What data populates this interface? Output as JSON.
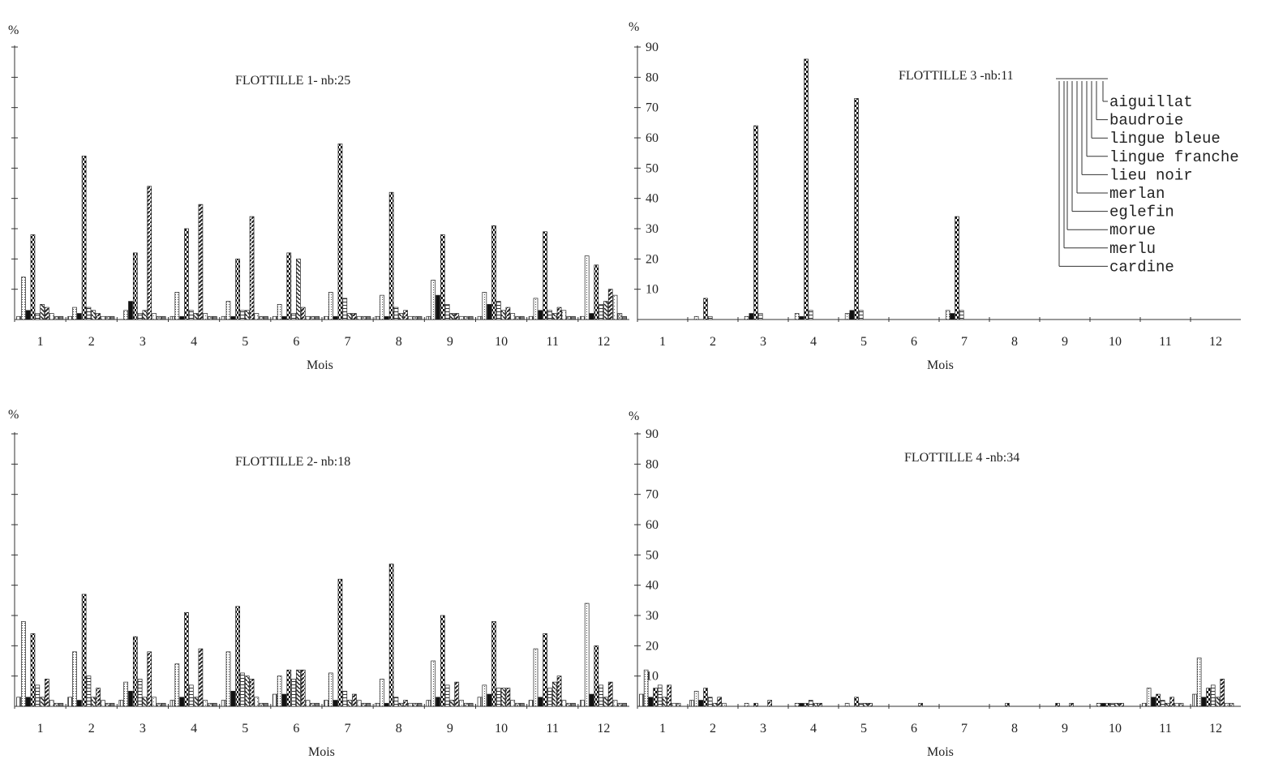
{
  "panel_titles": [
    "FLOTTILLE 1- nb:25",
    "FLOTTILLE 3 -nb:11",
    "FLOTTILLE 2- nb:18",
    "FLOTTILLE 4 -nb:34"
  ],
  "xlabel": "Mois",
  "ylabel": "%",
  "months": [
    "1",
    "2",
    "3",
    "4",
    "5",
    "6",
    "7",
    "8",
    "9",
    "10",
    "11",
    "12"
  ],
  "yticks": [
    "10",
    "20",
    "30",
    "40",
    "50",
    "60",
    "70",
    "80",
    "90"
  ],
  "legend": [
    "aiguillat",
    "baudroie",
    "lingue bleue",
    "lingue franche",
    "lieu noir",
    "merlan",
    "eglefin",
    "morue",
    "merlu",
    "cardine"
  ],
  "series_colors": {
    "cardine": "#555555",
    "merlu": "#888888",
    "morue": "#111111",
    "eglefin": "#1a1a1a",
    "merlan": "#333333",
    "lieu noir": "#222222",
    "lingue franche": "#444444",
    "lingue bleue": "#666666",
    "baudroie": "#777777",
    "aiguillat": "#2a2a2a"
  },
  "chart_data": [
    {
      "type": "bar",
      "title": "FLOTTILLE 1- nb:25",
      "xlabel": "Mois",
      "ylabel": "%",
      "ylim": [
        0,
        90
      ],
      "categories": [
        "1",
        "2",
        "3",
        "4",
        "5",
        "6",
        "7",
        "8",
        "9",
        "10",
        "11",
        "12"
      ],
      "series": [
        {
          "name": "cardine",
          "values": [
            1,
            1,
            0,
            1,
            1,
            1,
            1,
            1,
            1,
            1,
            1,
            1
          ]
        },
        {
          "name": "merlu",
          "values": [
            14,
            4,
            3,
            9,
            6,
            5,
            9,
            8,
            13,
            9,
            7,
            21
          ]
        },
        {
          "name": "morue",
          "values": [
            3,
            2,
            6,
            1,
            1,
            1,
            1,
            1,
            8,
            5,
            3,
            2
          ]
        },
        {
          "name": "eglefin",
          "values": [
            28,
            54,
            22,
            30,
            20,
            22,
            58,
            42,
            28,
            31,
            29,
            18
          ]
        },
        {
          "name": "merlan",
          "values": [
            2,
            4,
            2,
            3,
            3,
            2,
            7,
            4,
            5,
            6,
            3,
            5
          ]
        },
        {
          "name": "lieu noir",
          "values": [
            5,
            3,
            3,
            2,
            3,
            20,
            2,
            2,
            2,
            3,
            2,
            6
          ]
        },
        {
          "name": "lingue franche",
          "values": [
            4,
            2,
            44,
            38,
            34,
            4,
            2,
            3,
            2,
            4,
            4,
            10
          ]
        },
        {
          "name": "lingue bleue",
          "values": [
            2,
            1,
            2,
            2,
            2,
            1,
            1,
            1,
            1,
            2,
            3,
            8
          ]
        },
        {
          "name": "baudroie",
          "values": [
            1,
            1,
            1,
            1,
            1,
            1,
            1,
            1,
            1,
            1,
            1,
            2
          ]
        },
        {
          "name": "aiguillat",
          "values": [
            1,
            1,
            1,
            1,
            1,
            1,
            1,
            1,
            1,
            1,
            1,
            1
          ]
        }
      ]
    },
    {
      "type": "bar",
      "title": "FLOTTILLE 3 -nb:11",
      "xlabel": "Mois",
      "ylabel": "%",
      "ylim": [
        0,
        90
      ],
      "categories": [
        "1",
        "2",
        "3",
        "4",
        "5",
        "6",
        "7",
        "8",
        "9",
        "10",
        "11",
        "12"
      ],
      "series": [
        {
          "name": "cardine",
          "values": [
            0,
            0,
            0,
            0,
            0,
            0,
            0,
            0,
            0,
            0,
            0,
            0
          ]
        },
        {
          "name": "merlu",
          "values": [
            0,
            1,
            1,
            2,
            2,
            0,
            3,
            0,
            0,
            0,
            0,
            0
          ]
        },
        {
          "name": "morue",
          "values": [
            0,
            0,
            2,
            1,
            3,
            0,
            2,
            0,
            0,
            0,
            0,
            0
          ]
        },
        {
          "name": "eglefin",
          "values": [
            0,
            7,
            64,
            86,
            73,
            0,
            34,
            0,
            0,
            0,
            0,
            0
          ]
        },
        {
          "name": "merlan",
          "values": [
            0,
            1,
            2,
            3,
            3,
            0,
            3,
            0,
            0,
            0,
            0,
            0
          ]
        },
        {
          "name": "lieu noir",
          "values": [
            0,
            0,
            0,
            0,
            0,
            0,
            0,
            0,
            0,
            0,
            0,
            0
          ]
        },
        {
          "name": "lingue franche",
          "values": [
            0,
            0,
            0,
            0,
            0,
            0,
            0,
            0,
            0,
            0,
            0,
            0
          ]
        },
        {
          "name": "lingue bleue",
          "values": [
            0,
            0,
            0,
            0,
            0,
            0,
            0,
            0,
            0,
            0,
            0,
            0
          ]
        },
        {
          "name": "baudroie",
          "values": [
            0,
            0,
            0,
            0,
            0,
            0,
            0,
            0,
            0,
            0,
            0,
            0
          ]
        },
        {
          "name": "aiguillat",
          "values": [
            0,
            0,
            0,
            0,
            0,
            0,
            0,
            0,
            0,
            0,
            0,
            0
          ]
        }
      ]
    },
    {
      "type": "bar",
      "title": "FLOTTILLE 2- nb:18",
      "xlabel": "Mois",
      "ylabel": "%",
      "ylim": [
        0,
        90
      ],
      "categories": [
        "1",
        "2",
        "3",
        "4",
        "5",
        "6",
        "7",
        "8",
        "9",
        "10",
        "11",
        "12"
      ],
      "series": [
        {
          "name": "cardine",
          "values": [
            3,
            3,
            2,
            2,
            2,
            4,
            2,
            1,
            2,
            3,
            2,
            2
          ]
        },
        {
          "name": "merlu",
          "values": [
            28,
            18,
            8,
            14,
            18,
            10,
            11,
            9,
            15,
            7,
            19,
            34
          ]
        },
        {
          "name": "morue",
          "values": [
            3,
            2,
            5,
            3,
            5,
            4,
            2,
            1,
            3,
            4,
            3,
            4
          ]
        },
        {
          "name": "eglefin",
          "values": [
            24,
            37,
            23,
            31,
            33,
            12,
            42,
            47,
            30,
            28,
            24,
            20
          ]
        },
        {
          "name": "merlan",
          "values": [
            7,
            10,
            9,
            7,
            11,
            9,
            5,
            3,
            7,
            6,
            6,
            7
          ]
        },
        {
          "name": "lieu noir",
          "values": [
            3,
            3,
            3,
            3,
            10,
            12,
            2,
            1,
            2,
            6,
            8,
            3
          ]
        },
        {
          "name": "lingue franche",
          "values": [
            9,
            6,
            18,
            19,
            9,
            12,
            4,
            2,
            8,
            6,
            10,
            8
          ]
        },
        {
          "name": "lingue bleue",
          "values": [
            2,
            2,
            3,
            2,
            3,
            2,
            2,
            1,
            2,
            2,
            2,
            2
          ]
        },
        {
          "name": "baudroie",
          "values": [
            1,
            1,
            1,
            1,
            1,
            1,
            1,
            1,
            1,
            1,
            1,
            1
          ]
        },
        {
          "name": "aiguillat",
          "values": [
            1,
            1,
            1,
            1,
            1,
            1,
            1,
            1,
            1,
            1,
            1,
            1
          ]
        }
      ]
    },
    {
      "type": "bar",
      "title": "FLOTTILLE 4 -nb:34",
      "xlabel": "Mois",
      "ylabel": "%",
      "ylim": [
        0,
        90
      ],
      "categories": [
        "1",
        "2",
        "3",
        "4",
        "5",
        "6",
        "7",
        "8",
        "9",
        "10",
        "11",
        "12"
      ],
      "series": [
        {
          "name": "cardine",
          "values": [
            4,
            2,
            0,
            0,
            0,
            0,
            0,
            0,
            0,
            0,
            1,
            4
          ]
        },
        {
          "name": "merlu",
          "values": [
            12,
            5,
            1,
            1,
            1,
            0,
            0,
            0,
            0,
            1,
            6,
            16
          ]
        },
        {
          "name": "morue",
          "values": [
            3,
            2,
            0,
            1,
            0,
            0,
            0,
            0,
            0,
            1,
            3,
            3
          ]
        },
        {
          "name": "eglefin",
          "values": [
            6,
            6,
            1,
            1,
            3,
            0,
            0,
            1,
            1,
            1,
            4,
            6
          ]
        },
        {
          "name": "merlan",
          "values": [
            7,
            3,
            0,
            2,
            1,
            0,
            0,
            0,
            0,
            1,
            2,
            7
          ]
        },
        {
          "name": "lieu noir",
          "values": [
            3,
            1,
            0,
            1,
            1,
            0,
            0,
            0,
            0,
            1,
            1,
            3
          ]
        },
        {
          "name": "lingue franche",
          "values": [
            7,
            3,
            2,
            1,
            1,
            1,
            0,
            0,
            1,
            1,
            3,
            9
          ]
        },
        {
          "name": "lingue bleue",
          "values": [
            1,
            1,
            0,
            0,
            0,
            0,
            0,
            0,
            0,
            0,
            1,
            1
          ]
        },
        {
          "name": "baudroie",
          "values": [
            1,
            0,
            0,
            0,
            0,
            0,
            0,
            0,
            0,
            0,
            1,
            1
          ]
        },
        {
          "name": "aiguillat",
          "values": [
            0,
            0,
            0,
            0,
            0,
            0,
            0,
            0,
            0,
            0,
            0,
            0
          ]
        }
      ]
    }
  ]
}
